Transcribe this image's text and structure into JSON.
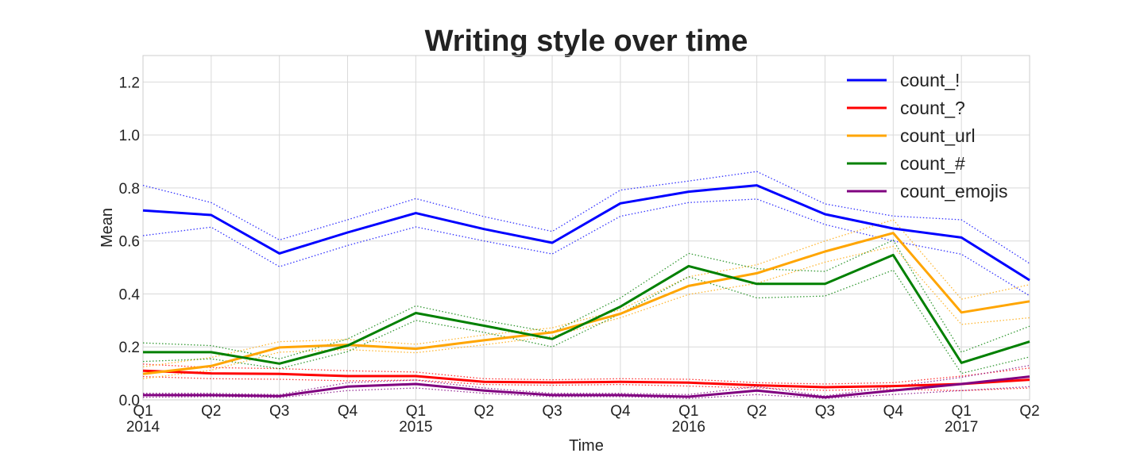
{
  "chart_data": {
    "type": "line",
    "title": "Writing style over time",
    "xlabel": "Time",
    "ylabel": "Mean",
    "ylim": [
      0,
      1.3
    ],
    "yticks": [
      "0.0",
      "0.2",
      "0.4",
      "0.6",
      "0.8",
      "1.0",
      "1.2"
    ],
    "x": [
      "2014 Q1",
      "2014 Q2",
      "2014 Q3",
      "2014 Q4",
      "2015 Q1",
      "2015 Q2",
      "2015 Q3",
      "2015 Q4",
      "2016 Q1",
      "2016 Q2",
      "2016 Q3",
      "2016 Q4",
      "2017 Q1",
      "2017 Q2"
    ],
    "xtick_quarters": [
      "Q1",
      "Q2",
      "Q3",
      "Q4",
      "Q1",
      "Q2",
      "Q3",
      "Q4",
      "Q1",
      "Q2",
      "Q3",
      "Q4",
      "Q1",
      "Q2"
    ],
    "xtick_years": [
      "2014",
      "",
      "",
      "",
      "2015",
      "",
      "",
      "",
      "2016",
      "",
      "",
      "",
      "2017",
      ""
    ],
    "grid": true,
    "legend_position": "top-right",
    "series": [
      {
        "name": "count_!",
        "color": "#0000ff",
        "values": [
          0.715,
          0.698,
          0.553,
          0.632,
          0.705,
          0.645,
          0.593,
          0.742,
          0.786,
          0.81,
          0.701,
          0.647,
          0.613,
          0.452
        ],
        "upper": [
          0.81,
          0.745,
          0.604,
          0.68,
          0.76,
          0.692,
          0.636,
          0.792,
          0.826,
          0.862,
          0.74,
          0.694,
          0.68,
          0.515
        ],
        "lower": [
          0.62,
          0.652,
          0.503,
          0.583,
          0.653,
          0.6,
          0.551,
          0.693,
          0.745,
          0.758,
          0.662,
          0.6,
          0.55,
          0.393
        ]
      },
      {
        "name": "count_?",
        "color": "#ff0000",
        "values": [
          0.11,
          0.1,
          0.098,
          0.09,
          0.09,
          0.068,
          0.066,
          0.068,
          0.065,
          0.055,
          0.048,
          0.052,
          0.06,
          0.076
        ],
        "upper": [
          0.135,
          0.122,
          0.118,
          0.11,
          0.105,
          0.08,
          0.076,
          0.08,
          0.078,
          0.065,
          0.06,
          0.065,
          0.09,
          0.12
        ],
        "lower": [
          0.088,
          0.08,
          0.078,
          0.072,
          0.075,
          0.058,
          0.055,
          0.058,
          0.052,
          0.045,
          0.036,
          0.04,
          0.035,
          0.045
        ]
      },
      {
        "name": "count_url",
        "color": "#ffa500",
        "values": [
          0.098,
          0.128,
          0.198,
          0.208,
          0.193,
          0.225,
          0.255,
          0.325,
          0.43,
          0.478,
          0.56,
          0.63,
          0.33,
          0.372
        ],
        "upper": [
          0.125,
          0.16,
          0.22,
          0.228,
          0.21,
          0.245,
          0.272,
          0.34,
          0.465,
          0.51,
          0.6,
          0.68,
          0.38,
          0.435
        ],
        "lower": [
          0.08,
          0.112,
          0.18,
          0.19,
          0.178,
          0.208,
          0.24,
          0.31,
          0.398,
          0.44,
          0.52,
          0.58,
          0.285,
          0.31
        ]
      },
      {
        "name": "count_#",
        "color": "#008000",
        "values": [
          0.18,
          0.18,
          0.137,
          0.205,
          0.328,
          0.28,
          0.23,
          0.352,
          0.505,
          0.438,
          0.438,
          0.547,
          0.14,
          0.22
        ],
        "upper": [
          0.215,
          0.205,
          0.155,
          0.23,
          0.355,
          0.3,
          0.255,
          0.385,
          0.553,
          0.495,
          0.485,
          0.603,
          0.18,
          0.278
        ],
        "lower": [
          0.145,
          0.155,
          0.118,
          0.182,
          0.3,
          0.255,
          0.2,
          0.325,
          0.465,
          0.385,
          0.392,
          0.49,
          0.1,
          0.162
        ]
      },
      {
        "name": "count_emojis",
        "color": "#800080",
        "values": [
          0.018,
          0.018,
          0.014,
          0.05,
          0.06,
          0.035,
          0.018,
          0.018,
          0.012,
          0.035,
          0.01,
          0.035,
          0.06,
          0.088
        ],
        "upper": [
          0.025,
          0.025,
          0.02,
          0.065,
          0.075,
          0.045,
          0.025,
          0.025,
          0.02,
          0.05,
          0.015,
          0.05,
          0.085,
          0.13
        ],
        "lower": [
          0.01,
          0.012,
          0.008,
          0.035,
          0.045,
          0.025,
          0.012,
          0.012,
          0.005,
          0.02,
          0.005,
          0.02,
          0.035,
          0.05
        ]
      }
    ]
  }
}
